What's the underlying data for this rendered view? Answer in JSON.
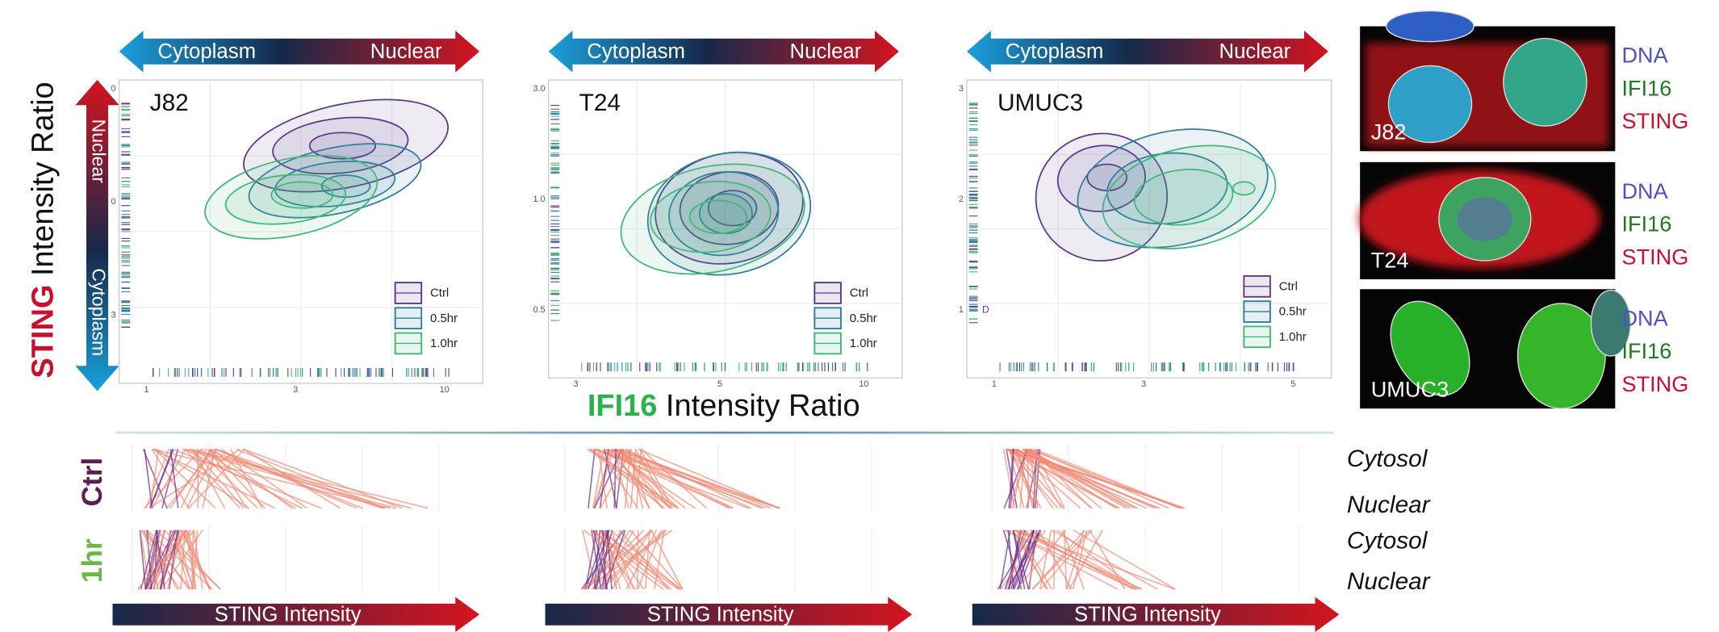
{
  "y_axis_title": {
    "highlight": "STING",
    "rest": " Intensity Ratio"
  },
  "y_arrow": [
    "Nuclear",
    "Cytoplasm"
  ],
  "x_axis_title": {
    "highlight": "IFI16",
    "rest": " Intensity Ratio"
  },
  "panels": [
    {
      "label": "J82",
      "arrow": [
        "Cytoplasm",
        "Nuclear"
      ],
      "xticks": [
        "1",
        "3",
        "10"
      ],
      "yticks": [
        "0",
        "0",
        "3"
      ],
      "legend": [
        "Ctrl",
        "0.5hr",
        "1.0hr"
      ]
    },
    {
      "label": "T24",
      "arrow": [
        "Cytoplasm",
        "Nuclear"
      ],
      "xticks": [
        "3",
        "5",
        "10"
      ],
      "yticks": [
        "3.0",
        "1.0",
        "0.5"
      ],
      "legend": [
        "Ctrl",
        "0.5hr",
        "1.0hr"
      ]
    },
    {
      "label": "UMUC3",
      "arrow": [
        "Cytoplasm",
        "Nuclear"
      ],
      "xticks": [
        "1",
        "3",
        "5"
      ],
      "yticks": [
        "3",
        "2",
        "1"
      ],
      "legend": [
        "Ctrl",
        "0.5hr",
        "1.0hr"
      ],
      "note": "D"
    }
  ],
  "images": [
    {
      "label": "J82",
      "channels": [
        "DNA",
        "IFI16",
        "STING"
      ]
    },
    {
      "label": "T24",
      "channels": [
        "DNA",
        "IFI16",
        "STING"
      ]
    },
    {
      "label": "UMUC3",
      "channels": [
        "DNA",
        "IFI16",
        "STING"
      ]
    }
  ],
  "bottom": {
    "rows": [
      "Ctrl",
      "1hr"
    ],
    "arrows": [
      "STING Intensity",
      "STING Intensity",
      "STING Intensity"
    ],
    "states": [
      "Cytosol",
      "Nuclear",
      "Cytosol",
      "Nuclear"
    ]
  }
}
